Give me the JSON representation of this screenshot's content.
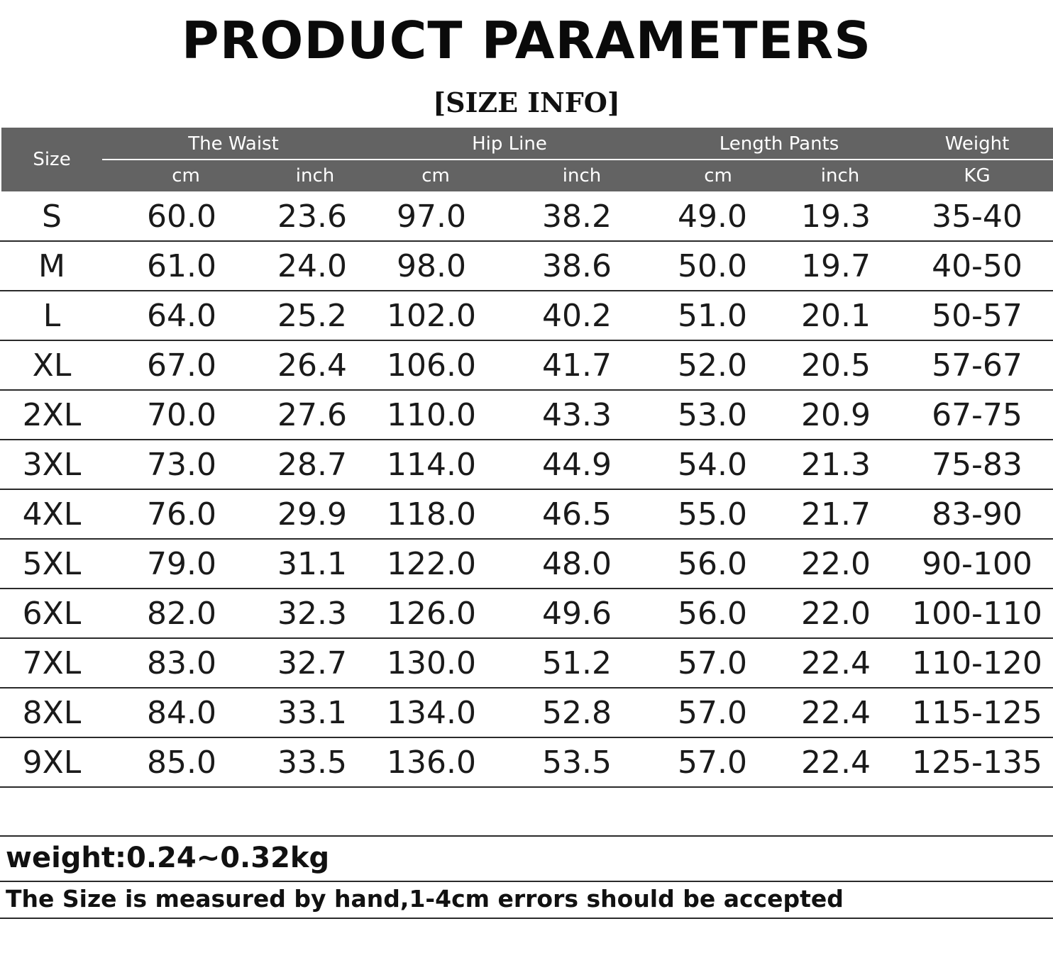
{
  "title": "PRODUCT PARAMETERS",
  "subtitle": "[SIZE INFO]",
  "table": {
    "size_header": "Size",
    "groups": [
      "The Waist",
      "Hip Line",
      "Length Pants",
      "Weight"
    ],
    "units": [
      "cm",
      "inch",
      "cm",
      "inch",
      "cm",
      "inch",
      "KG"
    ],
    "rows": [
      [
        "S",
        "60.0",
        "23.6",
        "97.0",
        "38.2",
        "49.0",
        "19.3",
        "35-40"
      ],
      [
        "M",
        "61.0",
        "24.0",
        "98.0",
        "38.6",
        "50.0",
        "19.7",
        "40-50"
      ],
      [
        "L",
        "64.0",
        "25.2",
        "102.0",
        "40.2",
        "51.0",
        "20.1",
        "50-57"
      ],
      [
        "XL",
        "67.0",
        "26.4",
        "106.0",
        "41.7",
        "52.0",
        "20.5",
        "57-67"
      ],
      [
        "2XL",
        "70.0",
        "27.6",
        "110.0",
        "43.3",
        "53.0",
        "20.9",
        "67-75"
      ],
      [
        "3XL",
        "73.0",
        "28.7",
        "114.0",
        "44.9",
        "54.0",
        "21.3",
        "75-83"
      ],
      [
        "4XL",
        "76.0",
        "29.9",
        "118.0",
        "46.5",
        "55.0",
        "21.7",
        "83-90"
      ],
      [
        "5XL",
        "79.0",
        "31.1",
        "122.0",
        "48.0",
        "56.0",
        "22.0",
        "90-100"
      ],
      [
        "6XL",
        "82.0",
        "32.3",
        "126.0",
        "49.6",
        "56.0",
        "22.0",
        "100-110"
      ],
      [
        "7XL",
        "83.0",
        "32.7",
        "130.0",
        "51.2",
        "57.0",
        "22.4",
        "110-120"
      ],
      [
        "8XL",
        "84.0",
        "33.1",
        "134.0",
        "52.8",
        "57.0",
        "22.4",
        "115-125"
      ],
      [
        "9XL",
        "85.0",
        "33.5",
        "136.0",
        "53.5",
        "57.0",
        "22.4",
        "125-135"
      ]
    ]
  },
  "notes": {
    "weight": "weight:0.24~0.32kg",
    "measure": "The Size is measured by hand,1-4cm errors should be accepted"
  },
  "colors": {
    "header_bg": "#636363",
    "header_text": "#ffffff",
    "line": "#2a2a2a"
  }
}
